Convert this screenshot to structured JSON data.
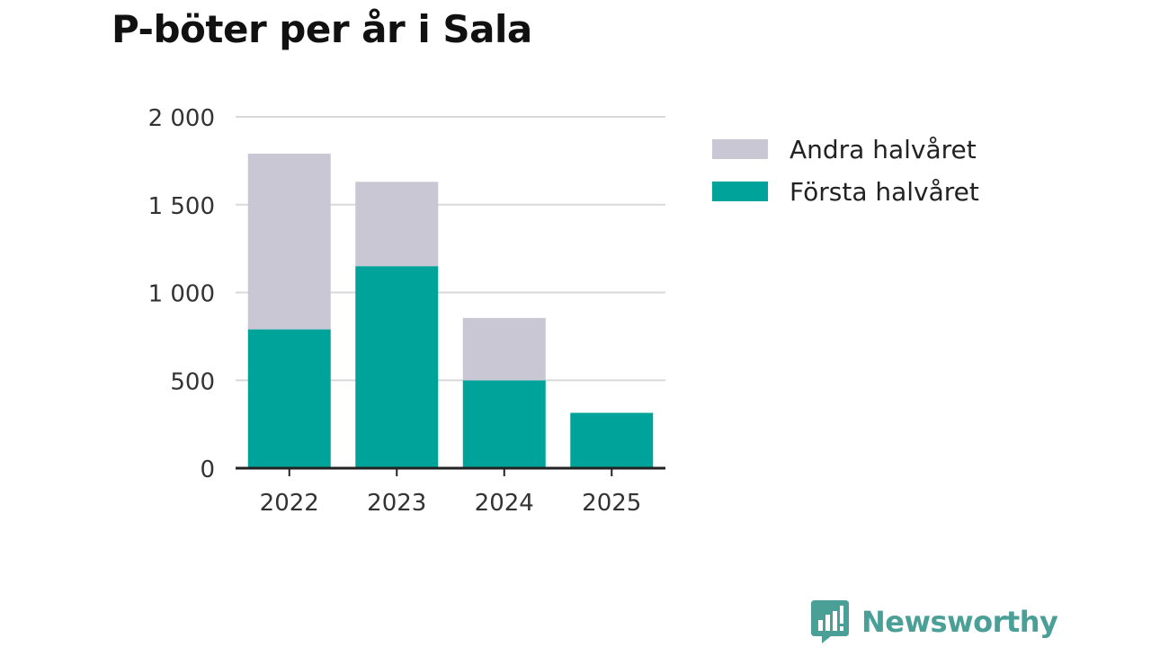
{
  "chart_data": {
    "type": "bar",
    "stacked": true,
    "title": "P-böter per år i Sala",
    "categories": [
      "2022",
      "2023",
      "2024",
      "2025"
    ],
    "series": [
      {
        "name": "Första halvåret",
        "color": "#00a399",
        "values": [
          790,
          1150,
          500,
          315
        ]
      },
      {
        "name": "Andra halvåret",
        "color": "#c8c7d3",
        "values": [
          1000,
          480,
          355,
          0
        ]
      }
    ],
    "legend_order": [
      "Andra halvåret",
      "Första halvåret"
    ],
    "legend_position": "right",
    "yticks": [
      0,
      500,
      1000,
      1500,
      2000
    ],
    "ytick_labels": [
      "0",
      "500",
      "1 000",
      "1 500",
      "2 000"
    ],
    "ylim": [
      0,
      2000
    ],
    "xlabel": "",
    "ylabel": "",
    "grid": true
  },
  "brand": {
    "name": "Newsworthy"
  }
}
